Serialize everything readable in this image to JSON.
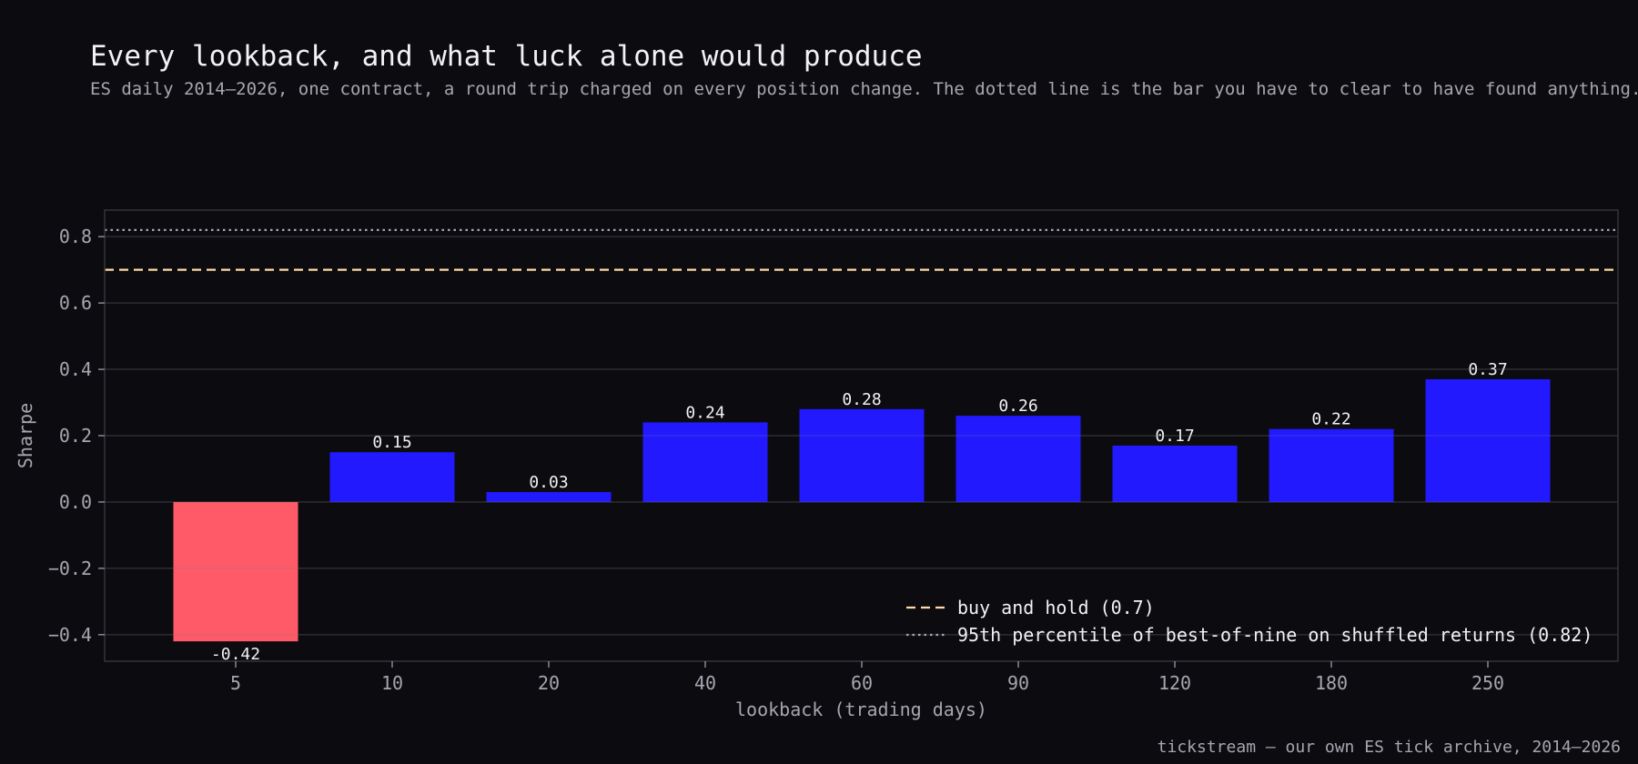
{
  "header": {
    "title": "Every lookback, and what luck alone would produce",
    "subtitle": "ES daily 2014–2026, one contract, a round trip charged on every position change. The dotted line is the bar you have to clear to have found anything."
  },
  "footer": {
    "source": "tickstream — our own ES tick archive, 2014–2026"
  },
  "colors": {
    "background": "#0c0c10",
    "bar_positive": "#2219ff",
    "bar_negative": "#ff5a68",
    "buy_hold_line": "#ffd9a8",
    "threshold_line": "#a6a6b0",
    "text": "#e6e6ea",
    "muted": "#a6a6b0"
  },
  "chart_data": {
    "type": "bar",
    "xlabel": "lookback (trading days)",
    "ylabel": "Sharpe",
    "categories": [
      "5",
      "10",
      "20",
      "40",
      "60",
      "90",
      "120",
      "180",
      "250"
    ],
    "values": [
      -0.42,
      0.15,
      0.03,
      0.24,
      0.28,
      0.26,
      0.17,
      0.22,
      0.37
    ],
    "value_labels": [
      "-0.42",
      "0.15",
      "0.03",
      "0.24",
      "0.28",
      "0.26",
      "0.17",
      "0.22",
      "0.37"
    ],
    "ylim": [
      -0.48,
      0.88
    ],
    "yticks": [
      -0.4,
      -0.2,
      0.0,
      0.2,
      0.4,
      0.6,
      0.8
    ],
    "ytick_labels": [
      "−0.4",
      "−0.2",
      "0.0",
      "0.2",
      "0.4",
      "0.6",
      "0.8"
    ],
    "grid": true,
    "reference_lines": [
      {
        "label": "buy and hold  (0.7)",
        "value": 0.7,
        "style": "dashed"
      },
      {
        "label": "95th percentile of best-of-nine on shuffled returns  (0.82)",
        "value": 0.82,
        "style": "dotted"
      }
    ],
    "legend_position": "bottom-right"
  }
}
